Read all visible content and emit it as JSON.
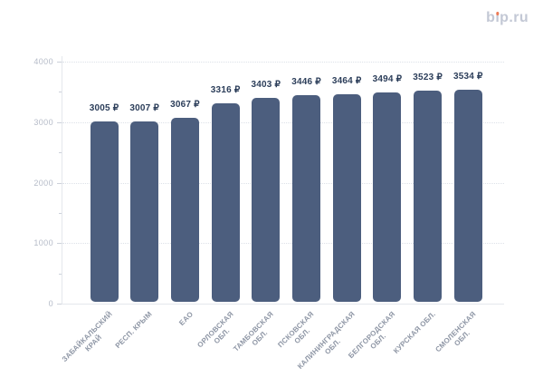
{
  "brand": {
    "label": "bip.ru",
    "parts": [
      "b",
      "ı",
      "p.ru"
    ],
    "text_color": "#c3c8d5",
    "accent_color": "#ed7a55"
  },
  "chart_data": {
    "type": "bar",
    "title": "",
    "categories": [
      "ЗАБАЙКАЛЬСКИЙ КРАЙ",
      "РЕСП. КРЫМ",
      "ЕАО",
      "ОРЛОВСКАЯ ОБЛ.",
      "ТАМБОВСКАЯ ОБЛ.",
      "ПСКОВСКАЯ ОБЛ.",
      "КАЛИНИНГРАДСКАЯ ОБЛ.",
      "БЕЛГОРОДСКАЯ ОБЛ.",
      "КУРСКАЯ ОБЛ.",
      "СМОЛЕНСКАЯ ОБЛ."
    ],
    "category_lines": [
      [
        "ЗАБАЙКАЛЬСКИЙ",
        "КРАЙ"
      ],
      [
        "РЕСП. КРЫМ"
      ],
      [
        "ЕАО"
      ],
      [
        "ОРЛОВСКАЯ",
        "ОБЛ."
      ],
      [
        "ТАМБОВСКАЯ",
        "ОБЛ."
      ],
      [
        "ПСКОВСКАЯ",
        "ОБЛ."
      ],
      [
        "КАЛИНИНГРАДСКАЯ",
        "ОБЛ."
      ],
      [
        "БЕЛГОРОДСКАЯ",
        "ОБЛ."
      ],
      [
        "КУРСКАЯ ОБЛ."
      ],
      [
        "СМОЛЕНСКАЯ",
        "ОБЛ."
      ]
    ],
    "values": [
      3005,
      3007,
      3067,
      3316,
      3403,
      3446,
      3464,
      3494,
      3523,
      3534
    ],
    "value_label_suffix": " ₽",
    "xlabel": "",
    "ylabel": "",
    "ylim": [
      0,
      4000
    ],
    "y_ticks": [
      0,
      1000,
      2000,
      3000,
      4000
    ],
    "y_minor_ticks": [
      500,
      1500,
      2500,
      3500
    ],
    "grid": "horizontal-dotted-major",
    "legend": "none",
    "colors": {
      "bar": "#4c5e7e",
      "value_label": "#2c3e5a",
      "y_tick_label": "#b5bbc8",
      "x_tick_label": "#8e96a5",
      "gridline": "#dde1e8",
      "axis_line": "#e4e7ec",
      "tick_mark": "#ccd1da"
    }
  }
}
